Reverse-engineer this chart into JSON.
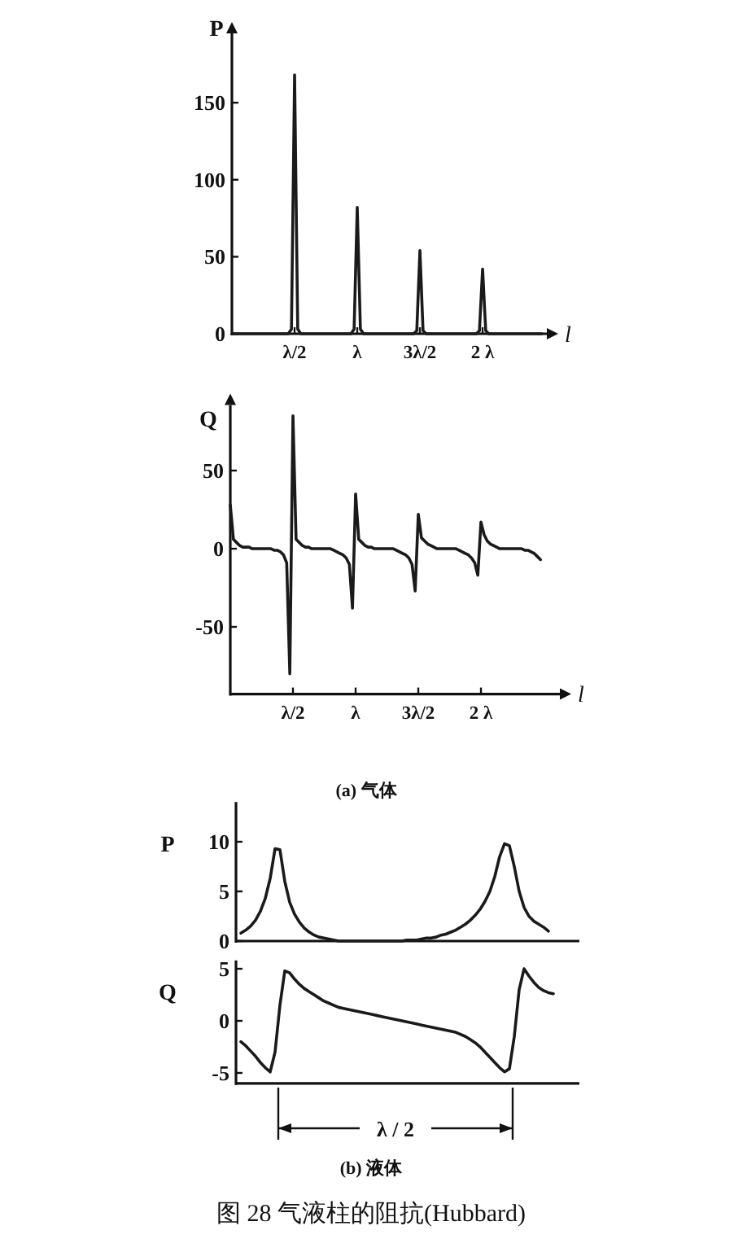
{
  "chart_data": [
    {
      "type": "line",
      "ylabel": "P",
      "xlabel": "l",
      "color": "#1a1a1a",
      "ylim": [
        0,
        195
      ],
      "yticks": [
        0,
        50,
        100,
        150
      ],
      "categories": [
        null,
        null,
        null,
        null,
        null,
        null,
        null,
        null,
        null,
        null,
        null,
        null,
        null,
        null,
        null,
        null,
        null,
        null,
        null,
        null,
        "λ/2",
        null,
        null,
        null,
        null,
        null,
        null,
        null,
        null,
        null,
        null,
        null,
        null,
        null,
        null,
        null,
        null,
        null,
        null,
        null,
        "λ",
        null,
        null,
        null,
        null,
        null,
        null,
        null,
        null,
        null,
        null,
        null,
        null,
        null,
        null,
        null,
        null,
        null,
        null,
        null,
        "3λ/2",
        null,
        null,
        null,
        null,
        null,
        null,
        null,
        null,
        null,
        null,
        null,
        null,
        null,
        null,
        null,
        null,
        null,
        null,
        null,
        "2 λ",
        null,
        null,
        null,
        null,
        null,
        null,
        null,
        null,
        null,
        null,
        null,
        null,
        null,
        null,
        null,
        null,
        null,
        null,
        null
      ],
      "values": [
        0,
        0,
        0,
        0,
        0,
        0,
        0,
        0,
        0,
        0,
        0,
        0,
        0,
        0,
        0,
        0,
        0,
        0,
        0,
        3,
        168,
        3,
        0,
        0,
        0,
        0,
        0,
        0,
        0,
        0,
        0,
        0,
        0,
        0,
        0,
        0,
        0,
        0,
        0,
        3,
        82,
        3,
        0,
        0,
        0,
        0,
        0,
        0,
        0,
        0,
        0,
        0,
        0,
        0,
        0,
        0,
        0,
        0,
        0,
        2,
        54,
        2,
        0,
        0,
        0,
        0,
        0,
        0,
        0,
        0,
        0,
        0,
        0,
        0,
        0,
        0,
        0,
        0,
        0,
        2,
        42,
        2,
        0,
        0,
        0,
        0,
        0,
        0,
        0,
        0,
        0,
        0,
        0,
        0,
        0,
        0,
        0,
        0,
        0,
        0
      ]
    },
    {
      "type": "line",
      "ylabel": "Q",
      "xlabel": "l",
      "color": "#1a1a1a",
      "ylim": [
        -93,
        92
      ],
      "yticks": [
        -50,
        0,
        50
      ],
      "annotations": [
        "(a)  气体"
      ],
      "categories": [
        null,
        null,
        null,
        null,
        null,
        null,
        null,
        null,
        null,
        null,
        null,
        null,
        null,
        null,
        null,
        null,
        null,
        null,
        null,
        null,
        "λ/2",
        null,
        null,
        null,
        null,
        null,
        null,
        null,
        null,
        null,
        null,
        null,
        null,
        null,
        null,
        null,
        null,
        null,
        null,
        null,
        "λ",
        null,
        null,
        null,
        null,
        null,
        null,
        null,
        null,
        null,
        null,
        null,
        null,
        null,
        null,
        null,
        null,
        null,
        null,
        null,
        "3λ/2",
        null,
        null,
        null,
        null,
        null,
        null,
        null,
        null,
        null,
        null,
        null,
        null,
        null,
        null,
        null,
        null,
        null,
        null,
        null,
        "2 λ",
        null,
        null,
        null,
        null,
        null,
        null,
        null,
        null,
        null,
        null,
        null,
        null,
        null,
        null,
        null,
        null,
        null,
        null,
        null
      ],
      "values": [
        28,
        6,
        4,
        2,
        1,
        1,
        1,
        0,
        0,
        0,
        0,
        0,
        0,
        0,
        -1,
        -1,
        -2,
        -4,
        -9,
        -80,
        85,
        6,
        4,
        2,
        1,
        1,
        0,
        0,
        0,
        0,
        0,
        0,
        0,
        -1,
        -2,
        -3,
        -4,
        -6,
        -10,
        -38,
        35,
        6,
        4,
        2,
        1,
        1,
        0,
        0,
        0,
        0,
        0,
        0,
        0,
        -1,
        -2,
        -3,
        -4,
        -6,
        -10,
        -27,
        22,
        7,
        5,
        3,
        2,
        1,
        0,
        0,
        0,
        0,
        0,
        0,
        0,
        -1,
        -2,
        -3,
        -4,
        -6,
        -9,
        -17,
        17,
        9,
        5,
        3,
        2,
        1,
        0,
        0,
        0,
        0,
        0,
        0,
        0,
        0,
        -1,
        -1,
        -2,
        -3,
        -5,
        -7
      ]
    },
    {
      "type": "line",
      "ylabel": "P",
      "color": "#1a1a1a",
      "ylim": [
        0,
        14
      ],
      "yticks": [
        0,
        5,
        10
      ],
      "tick_labels": "y",
      "categories": [
        null,
        null,
        null,
        null,
        null,
        null,
        null,
        null,
        null,
        null,
        null,
        null,
        null,
        null,
        null,
        null,
        null,
        null,
        null,
        null,
        null,
        null,
        null,
        null,
        null,
        null,
        null,
        null,
        null,
        null,
        null,
        null,
        null,
        null,
        null,
        null,
        null,
        null,
        null,
        null,
        null,
        null,
        null,
        null,
        null,
        null,
        null,
        null,
        null,
        null,
        null,
        null,
        null,
        null,
        null,
        null,
        null,
        null,
        null,
        null,
        null,
        null,
        null,
        null,
        null
      ],
      "values": [
        0.8,
        1.1,
        1.5,
        2.1,
        3.0,
        4.3,
        6.3,
        9.3,
        9.2,
        6.0,
        3.9,
        2.7,
        1.9,
        1.3,
        0.9,
        0.6,
        0.4,
        0.3,
        0.2,
        0.1,
        0,
        0,
        0,
        0,
        0,
        0,
        0,
        0,
        0,
        0,
        0,
        0,
        0,
        0,
        0.1,
        0.1,
        0.1,
        0.2,
        0.3,
        0.3,
        0.4,
        0.6,
        0.7,
        0.9,
        1.1,
        1.4,
        1.7,
        2.1,
        2.6,
        3.2,
        4.0,
        5.0,
        6.5,
        8.5,
        9.8,
        9.6,
        7.5,
        5.0,
        3.4,
        2.5,
        2.0,
        1.7,
        1.4,
        1.0,
        null
      ]
    },
    {
      "type": "line",
      "ylabel": "Q",
      "color": "#1a1a1a",
      "ylim": [
        -6,
        5.8
      ],
      "yticks": [
        -5,
        0,
        5
      ],
      "tick_labels": "y",
      "annotations": [
        "λ / 2",
        "(b)  液体",
        "图 28 气液柱的阻抗(Hubbard)"
      ],
      "categories": [
        null,
        null,
        null,
        null,
        null,
        null,
        null,
        null,
        null,
        null,
        null,
        null,
        null,
        null,
        null,
        null,
        null,
        null,
        null,
        null,
        null,
        null,
        null,
        null,
        null,
        null,
        null,
        null,
        null,
        null,
        null,
        null,
        null,
        null,
        null,
        null,
        null,
        null,
        null,
        null,
        null,
        null,
        null,
        null,
        null,
        null,
        null,
        null,
        null,
        null,
        null,
        null,
        null,
        null,
        null,
        null,
        null,
        null,
        null,
        null,
        null,
        null,
        null,
        null,
        null
      ],
      "values": [
        -2.0,
        -2.4,
        -2.9,
        -3.4,
        -4.0,
        -4.5,
        -4.9,
        -3.0,
        1.5,
        4.8,
        4.6,
        4.0,
        3.5,
        3.1,
        2.8,
        2.5,
        2.2,
        1.9,
        1.7,
        1.5,
        1.3,
        1.2,
        1.1,
        1.0,
        0.9,
        0.8,
        0.7,
        0.6,
        0.5,
        0.4,
        0.3,
        0.2,
        0.1,
        0.0,
        -0.1,
        -0.2,
        -0.3,
        -0.4,
        -0.5,
        -0.6,
        -0.7,
        -0.8,
        -0.9,
        -1.0,
        -1.1,
        -1.3,
        -1.5,
        -1.8,
        -2.1,
        -2.5,
        -3.0,
        -3.5,
        -4.0,
        -4.5,
        -4.9,
        -4.6,
        -1.5,
        3.0,
        5.0,
        4.3,
        3.7,
        3.2,
        2.9,
        2.7,
        2.6
      ]
    }
  ]
}
